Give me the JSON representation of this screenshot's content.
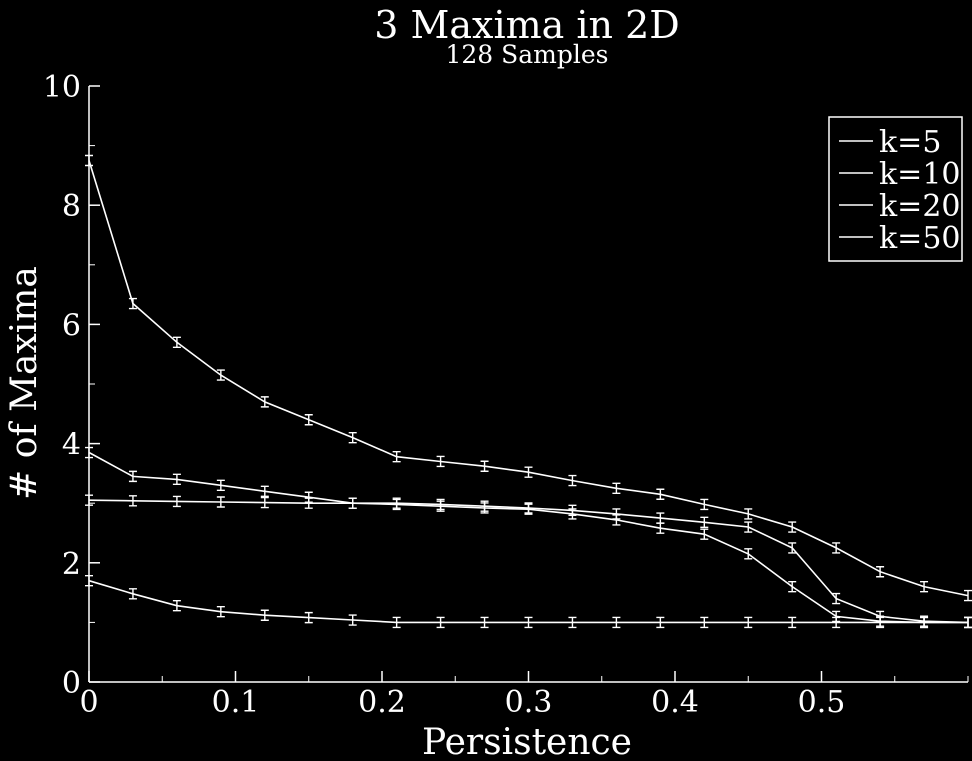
{
  "chart_data": {
    "type": "line",
    "title": "3 Maxima in 2D",
    "subtitle": "128 Samples",
    "xlabel": "Persistence",
    "ylabel": "# of Maxima",
    "xlim": [
      0,
      0.6
    ],
    "ylim": [
      0,
      10
    ],
    "x_ticks": [
      {
        "value": 0,
        "label": "0"
      },
      {
        "value": 0.1,
        "label": "0.1"
      },
      {
        "value": 0.2,
        "label": "0.2"
      },
      {
        "value": 0.3,
        "label": "0.3"
      },
      {
        "value": 0.4,
        "label": "0.4"
      },
      {
        "value": 0.5,
        "label": "0.5"
      }
    ],
    "x_minor_step": 0.05,
    "y_ticks": [
      {
        "value": 0,
        "label": "0"
      },
      {
        "value": 2,
        "label": "2"
      },
      {
        "value": 4,
        "label": "4"
      },
      {
        "value": 6,
        "label": "6"
      },
      {
        "value": 8,
        "label": "8"
      },
      {
        "value": 10,
        "label": "10"
      }
    ],
    "y_minor_step": 1,
    "grid": false,
    "legend_position": "top-right",
    "line_color": "#ffffff",
    "background_color": "#000000",
    "series": [
      {
        "name": "k=5",
        "points": [
          [
            0,
            8.75
          ],
          [
            0.03,
            6.35
          ],
          [
            0.06,
            5.7
          ],
          [
            0.09,
            5.15
          ],
          [
            0.12,
            4.7
          ],
          [
            0.15,
            4.4
          ],
          [
            0.18,
            4.1
          ],
          [
            0.21,
            3.78
          ],
          [
            0.24,
            3.7
          ],
          [
            0.27,
            3.62
          ],
          [
            0.3,
            3.52
          ],
          [
            0.33,
            3.38
          ],
          [
            0.36,
            3.25
          ],
          [
            0.39,
            3.15
          ],
          [
            0.42,
            2.98
          ],
          [
            0.45,
            2.82
          ],
          [
            0.48,
            2.6
          ],
          [
            0.51,
            2.25
          ],
          [
            0.54,
            1.85
          ],
          [
            0.57,
            1.6
          ],
          [
            0.6,
            1.45
          ]
        ]
      },
      {
        "name": "k=10",
        "points": [
          [
            0,
            3.85
          ],
          [
            0.03,
            3.45
          ],
          [
            0.06,
            3.4
          ],
          [
            0.09,
            3.3
          ],
          [
            0.12,
            3.2
          ],
          [
            0.15,
            3.1
          ],
          [
            0.18,
            3.0
          ],
          [
            0.21,
            3.0
          ],
          [
            0.24,
            2.98
          ],
          [
            0.27,
            2.95
          ],
          [
            0.3,
            2.92
          ],
          [
            0.33,
            2.88
          ],
          [
            0.36,
            2.82
          ],
          [
            0.39,
            2.75
          ],
          [
            0.42,
            2.68
          ],
          [
            0.45,
            2.6
          ],
          [
            0.48,
            2.25
          ],
          [
            0.51,
            1.4
          ],
          [
            0.54,
            1.1
          ],
          [
            0.57,
            1.02
          ],
          [
            0.6,
            1.0
          ]
        ]
      },
      {
        "name": "k=20",
        "points": [
          [
            0,
            3.05
          ],
          [
            0.03,
            3.04
          ],
          [
            0.06,
            3.03
          ],
          [
            0.09,
            3.02
          ],
          [
            0.12,
            3.01
          ],
          [
            0.15,
            3.0
          ],
          [
            0.18,
            3.0
          ],
          [
            0.21,
            2.98
          ],
          [
            0.24,
            2.95
          ],
          [
            0.27,
            2.92
          ],
          [
            0.3,
            2.9
          ],
          [
            0.33,
            2.82
          ],
          [
            0.36,
            2.72
          ],
          [
            0.39,
            2.58
          ],
          [
            0.42,
            2.48
          ],
          [
            0.45,
            2.15
          ],
          [
            0.48,
            1.6
          ],
          [
            0.51,
            1.1
          ],
          [
            0.54,
            1.02
          ],
          [
            0.57,
            1.0
          ],
          [
            0.6,
            1.0
          ]
        ]
      },
      {
        "name": "k=50",
        "points": [
          [
            0,
            1.7
          ],
          [
            0.03,
            1.48
          ],
          [
            0.06,
            1.28
          ],
          [
            0.09,
            1.18
          ],
          [
            0.12,
            1.12
          ],
          [
            0.15,
            1.08
          ],
          [
            0.18,
            1.04
          ],
          [
            0.21,
            1.0
          ],
          [
            0.24,
            1.0
          ],
          [
            0.27,
            1.0
          ],
          [
            0.3,
            1.0
          ],
          [
            0.33,
            1.0
          ],
          [
            0.36,
            1.0
          ],
          [
            0.39,
            1.0
          ],
          [
            0.42,
            1.0
          ],
          [
            0.45,
            1.0
          ],
          [
            0.48,
            1.0
          ],
          [
            0.51,
            1.0
          ],
          [
            0.54,
            1.0
          ],
          [
            0.57,
            1.0
          ],
          [
            0.6,
            1.0
          ]
        ]
      }
    ]
  }
}
